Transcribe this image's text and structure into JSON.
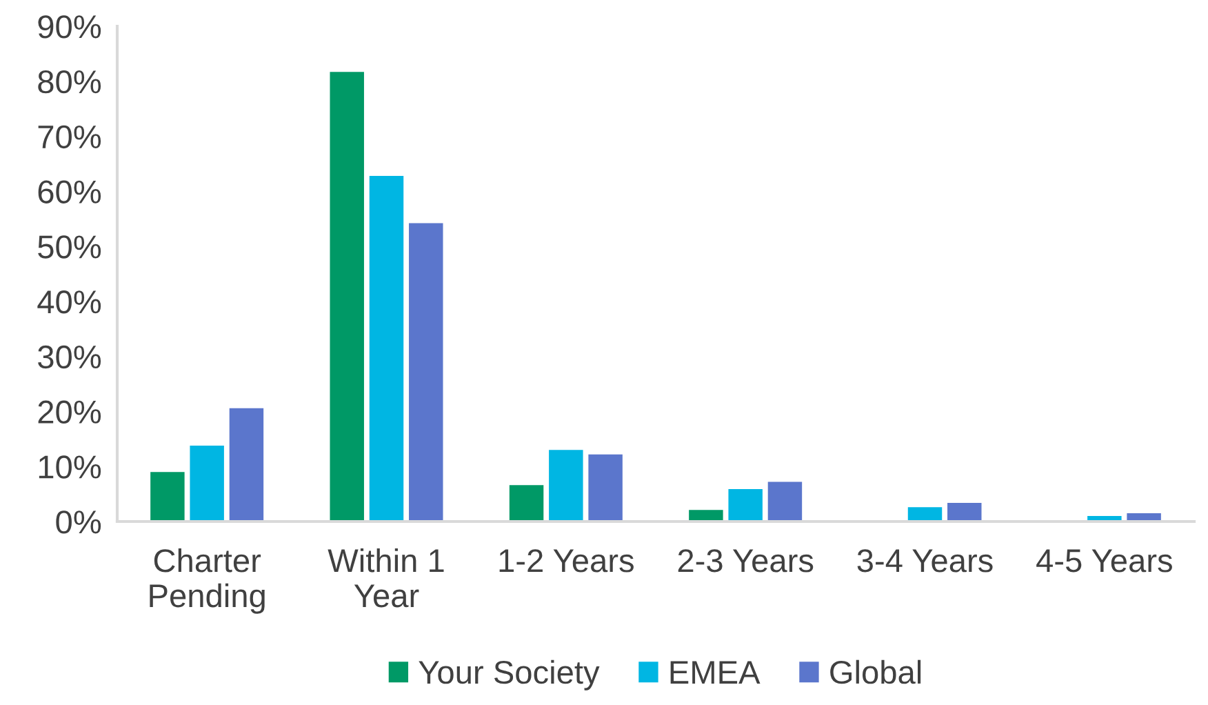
{
  "chart_data": {
    "type": "bar",
    "categories": [
      "Charter\nPending",
      "Within 1\nYear",
      "1-2 Years",
      "2-3 Years",
      "3-4 Years",
      "4-5 Years"
    ],
    "series": [
      {
        "name": "Your Society",
        "color": "#009966",
        "values": [
          9.0,
          81.7,
          6.6,
          2.1,
          0,
          0
        ]
      },
      {
        "name": "EMEA",
        "color": "#00b6e3",
        "values": [
          13.8,
          62.8,
          13.0,
          5.9,
          2.6,
          1.0
        ]
      },
      {
        "name": "Global",
        "color": "#5b76cc",
        "values": [
          20.6,
          54.2,
          12.2,
          7.2,
          3.4,
          1.5
        ]
      }
    ],
    "ylim": [
      0,
      90
    ],
    "yticks": [
      {
        "value": 0,
        "label": "0%"
      },
      {
        "value": 10,
        "label": "10%"
      },
      {
        "value": 20,
        "label": "20%"
      },
      {
        "value": 30,
        "label": "30%"
      },
      {
        "value": 40,
        "label": "40%"
      },
      {
        "value": 50,
        "label": "50%"
      },
      {
        "value": 60,
        "label": "60%"
      },
      {
        "value": 70,
        "label": "70%"
      },
      {
        "value": 80,
        "label": "80%"
      },
      {
        "value": 90,
        "label": "90%"
      }
    ],
    "grid": false,
    "legend": "bottom"
  }
}
